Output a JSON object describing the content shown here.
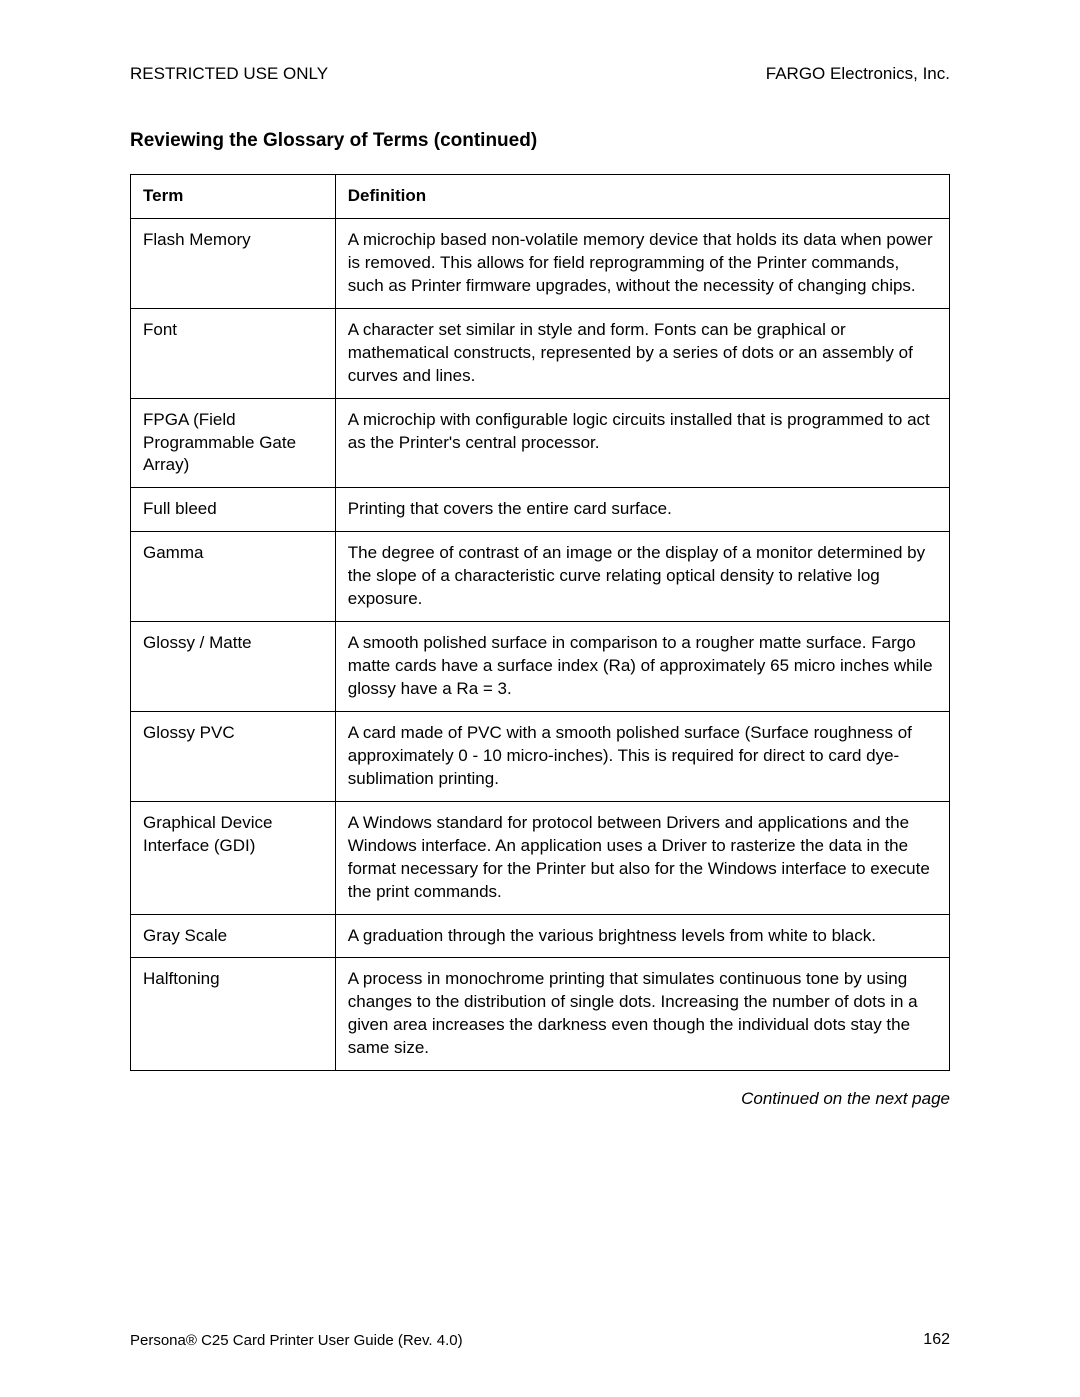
{
  "header": {
    "left": "RESTRICTED USE ONLY",
    "right": "FARGO Electronics, Inc."
  },
  "section_title": "Reviewing the Glossary of Terms (continued)",
  "table": {
    "head": {
      "term": "Term",
      "definition": "Definition"
    },
    "rows": [
      {
        "term": "Flash Memory",
        "definition": "A microchip based non-volatile memory device that holds its data when power is removed.   This allows for field reprogramming of the Printer commands, such as Printer firmware upgrades, without the necessity of changing chips."
      },
      {
        "term": "Font",
        "definition": "A character set similar in style and form.  Fonts can be graphical or mathematical constructs, represented by a series of dots or an assembly of curves and lines."
      },
      {
        "term": "FPGA (Field Programmable Gate Array)",
        "definition": "A microchip with configurable logic circuits installed that is programmed to act as the Printer's central processor."
      },
      {
        "term": "Full bleed",
        "definition": "Printing that covers the entire card surface."
      },
      {
        "term": "Gamma",
        "definition": "The degree of contrast of an image or the display of a monitor determined by the slope of a characteristic curve relating optical density to relative log exposure."
      },
      {
        "term": "Glossy / Matte",
        "definition": "A smooth polished surface in comparison to a rougher matte surface.  Fargo matte cards have a surface index (Ra) of approximately 65 micro inches while glossy have a Ra = 3."
      },
      {
        "term": "Glossy PVC",
        "definition": "A card made of PVC with a smooth polished surface (Surface roughness of approximately 0 - 10 micro-inches).  This is required for direct to card dye-sublimation printing."
      },
      {
        "term": "Graphical Device Interface (GDI)",
        "definition": "A Windows standard for protocol between Drivers and applications and the Windows interface.  An application uses a Driver to rasterize the data in the format necessary for the Printer but also for the Windows interface to execute the print commands."
      },
      {
        "term": "Gray Scale",
        "definition": "A graduation through the various brightness levels from white to black."
      },
      {
        "term": "Halftoning",
        "definition": "A process in monochrome printing that simulates continuous tone by using changes to the distribution of single dots.  Increasing the number of dots in a given area increases the darkness even though the individual dots stay the same size."
      }
    ]
  },
  "continued": "Continued on the next page",
  "footer": {
    "left": "Persona® C25 Card Printer User Guide (Rev. 4.0)",
    "page": "162"
  }
}
